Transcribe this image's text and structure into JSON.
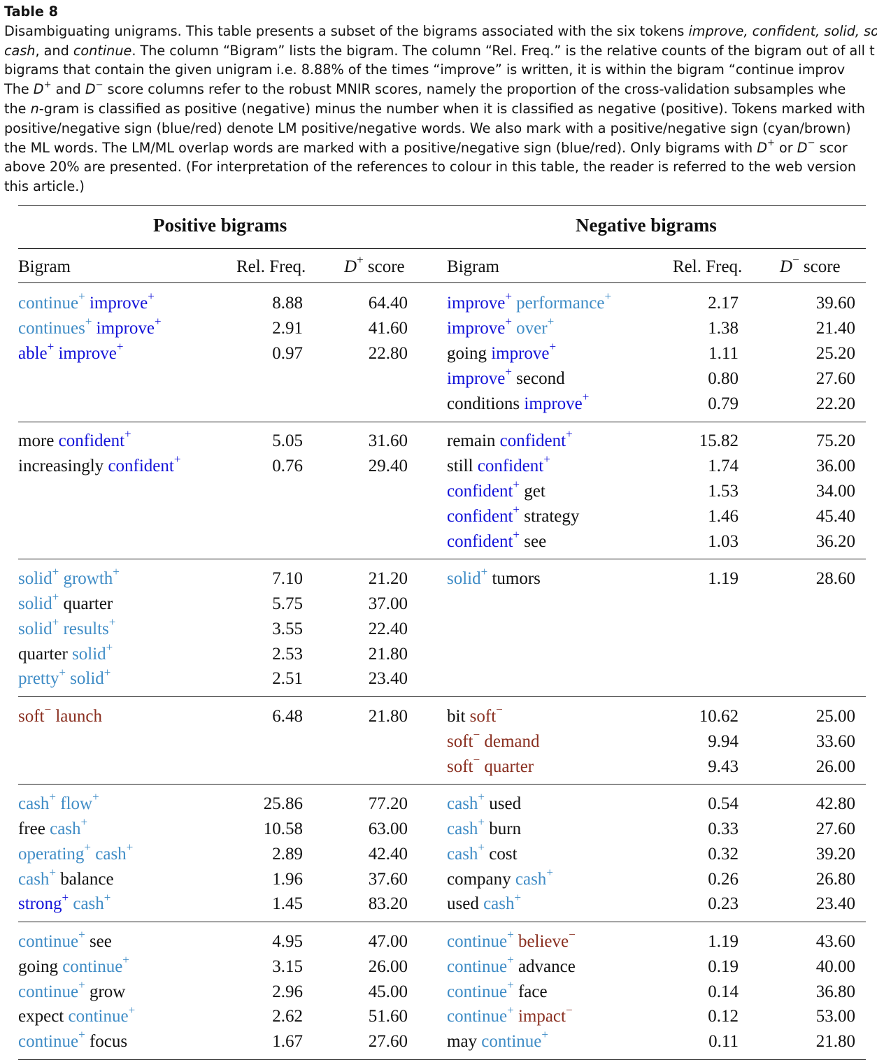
{
  "table_label": "Table 8",
  "caption_lines": [
    "Disambiguating unigrams. This table presents a subset of the bigrams associated with the six tokens ",
    "improve, confident, solid, so",
    "cash",
    ", and ",
    "continue",
    ". The column “Bigram” lists the bigram. The column “Rel. Freq.” is the relative counts of the bigram out of all t",
    "bigrams that contain the given unigram i.e. 8.88% of the times “improve” is written, it is within the bigram “continue improv",
    "The ",
    "D",
    "+",
    " and ",
    "D",
    "−",
    " score columns refer to the robust MNIR scores, namely the proportion of the cross-validation subsamples whe",
    "the ",
    "n",
    "-gram is classified as positive (negative) minus the number when it is classified as negative (positive). Tokens marked with",
    "positive/negative sign (blue/red) denote LM positive/negative words. We also mark with a positive/negative sign (cyan/brown)",
    "the ML words. The LM/ML overlap words are marked with a positive/negative sign (blue/red). Only bigrams with ",
    "D",
    "+",
    " or ",
    "D",
    "−",
    " scor",
    "above 20% are presented. (For interpretation of the references to colour in this table, the reader is referred to the web version",
    "this article.)"
  ],
  "headers": {
    "positive_group": "Positive bigrams",
    "negative_group": "Negative bigrams",
    "bigram": "Bigram",
    "rel_freq": "Rel. Freq.",
    "dplus_letter": "D",
    "dplus_sup": "+",
    "dminus_letter": "D",
    "dminus_sup": "−",
    "score_word": " score"
  },
  "legend_colors": {
    "lm_word": "#1212d8",
    "ml_positive_word": "#3f8cc6",
    "ml_negative_word": "#8a2f20"
  },
  "groups": [
    {
      "positive": [
        {
          "tokens": [
            {
              "t": "continue",
              "s": "+",
              "c": "mlp"
            },
            {
              "t": "improve",
              "s": "+",
              "c": "lmp"
            }
          ],
          "freq": "8.88",
          "score": "64.40"
        },
        {
          "tokens": [
            {
              "t": "continues",
              "s": "+",
              "c": "mlp"
            },
            {
              "t": "improve",
              "s": "+",
              "c": "lmp"
            }
          ],
          "freq": "2.91",
          "score": "41.60"
        },
        {
          "tokens": [
            {
              "t": "able",
              "s": "+",
              "c": "lmp"
            },
            {
              "t": "improve",
              "s": "+",
              "c": "lmp"
            }
          ],
          "freq": "0.97",
          "score": "22.80"
        }
      ],
      "negative": [
        {
          "tokens": [
            {
              "t": "improve",
              "s": "+",
              "c": "lmp"
            },
            {
              "t": "performance",
              "s": "+",
              "c": "mlp"
            }
          ],
          "freq": "2.17",
          "score": "39.60"
        },
        {
          "tokens": [
            {
              "t": "improve",
              "s": "+",
              "c": "lmp"
            },
            {
              "t": "over",
              "s": "+",
              "c": "mlp"
            }
          ],
          "freq": "1.38",
          "score": "21.40"
        },
        {
          "tokens": [
            {
              "t": "going",
              "s": "",
              "c": ""
            },
            {
              "t": "improve",
              "s": "+",
              "c": "lmp"
            }
          ],
          "freq": "1.11",
          "score": "25.20"
        },
        {
          "tokens": [
            {
              "t": "improve",
              "s": "+",
              "c": "lmp"
            },
            {
              "t": "second",
              "s": "",
              "c": ""
            }
          ],
          "freq": "0.80",
          "score": "27.60"
        },
        {
          "tokens": [
            {
              "t": "conditions",
              "s": "",
              "c": ""
            },
            {
              "t": "improve",
              "s": "+",
              "c": "lmp"
            }
          ],
          "freq": "0.79",
          "score": "22.20"
        }
      ]
    },
    {
      "positive": [
        {
          "tokens": [
            {
              "t": "more",
              "s": "",
              "c": ""
            },
            {
              "t": "confident",
              "s": "+",
              "c": "lmp"
            }
          ],
          "freq": "5.05",
          "score": "31.60"
        },
        {
          "tokens": [
            {
              "t": "increasingly",
              "s": "",
              "c": ""
            },
            {
              "t": "confident",
              "s": "+",
              "c": "lmp"
            }
          ],
          "freq": "0.76",
          "score": "29.40"
        }
      ],
      "negative": [
        {
          "tokens": [
            {
              "t": "remain",
              "s": "",
              "c": ""
            },
            {
              "t": "confident",
              "s": "+",
              "c": "lmp"
            }
          ],
          "freq": "15.82",
          "score": "75.20"
        },
        {
          "tokens": [
            {
              "t": "still",
              "s": "",
              "c": ""
            },
            {
              "t": "confident",
              "s": "+",
              "c": "lmp"
            }
          ],
          "freq": "1.74",
          "score": "36.00"
        },
        {
          "tokens": [
            {
              "t": "confident",
              "s": "+",
              "c": "lmp"
            },
            {
              "t": "get",
              "s": "",
              "c": ""
            }
          ],
          "freq": "1.53",
          "score": "34.00"
        },
        {
          "tokens": [
            {
              "t": "confident",
              "s": "+",
              "c": "lmp"
            },
            {
              "t": "strategy",
              "s": "",
              "c": ""
            }
          ],
          "freq": "1.46",
          "score": "45.40"
        },
        {
          "tokens": [
            {
              "t": "confident",
              "s": "+",
              "c": "lmp"
            },
            {
              "t": "see",
              "s": "",
              "c": ""
            }
          ],
          "freq": "1.03",
          "score": "36.20"
        }
      ]
    },
    {
      "positive": [
        {
          "tokens": [
            {
              "t": "solid",
              "s": "+",
              "c": "mlp"
            },
            {
              "t": "growth",
              "s": "+",
              "c": "mlp"
            }
          ],
          "freq": "7.10",
          "score": "21.20"
        },
        {
          "tokens": [
            {
              "t": "solid",
              "s": "+",
              "c": "mlp"
            },
            {
              "t": "quarter",
              "s": "",
              "c": ""
            }
          ],
          "freq": "5.75",
          "score": "37.00"
        },
        {
          "tokens": [
            {
              "t": "solid",
              "s": "+",
              "c": "mlp"
            },
            {
              "t": "results",
              "s": "+",
              "c": "mlp"
            }
          ],
          "freq": "3.55",
          "score": "22.40"
        },
        {
          "tokens": [
            {
              "t": "quarter",
              "s": "",
              "c": ""
            },
            {
              "t": "solid",
              "s": "+",
              "c": "mlp"
            }
          ],
          "freq": "2.53",
          "score": "21.80"
        },
        {
          "tokens": [
            {
              "t": "pretty",
              "s": "+",
              "c": "mlp"
            },
            {
              "t": "solid",
              "s": "+",
              "c": "mlp"
            }
          ],
          "freq": "2.51",
          "score": "23.40"
        }
      ],
      "negative": [
        {
          "tokens": [
            {
              "t": "solid",
              "s": "+",
              "c": "mlp"
            },
            {
              "t": "tumors",
              "s": "",
              "c": ""
            }
          ],
          "freq": "1.19",
          "score": "28.60"
        }
      ]
    },
    {
      "positive": [
        {
          "tokens": [
            {
              "t": "soft",
              "s": "−",
              "c": "mln"
            },
            {
              "t": "launch",
              "s": "",
              "c": "mln"
            }
          ],
          "freq": "6.48",
          "score": "21.80"
        }
      ],
      "negative": [
        {
          "tokens": [
            {
              "t": "bit",
              "s": "",
              "c": ""
            },
            {
              "t": "soft",
              "s": "−",
              "c": "mln"
            }
          ],
          "freq": "10.62",
          "score": "25.00"
        },
        {
          "tokens": [
            {
              "t": "soft",
              "s": "−",
              "c": "mln"
            },
            {
              "t": "demand",
              "s": "",
              "c": "mln"
            }
          ],
          "freq": "9.94",
          "score": "33.60"
        },
        {
          "tokens": [
            {
              "t": "soft",
              "s": "−",
              "c": "mln"
            },
            {
              "t": "quarter",
              "s": "",
              "c": "mln"
            }
          ],
          "freq": "9.43",
          "score": "26.00"
        }
      ]
    },
    {
      "positive": [
        {
          "tokens": [
            {
              "t": "cash",
              "s": "+",
              "c": "mlp"
            },
            {
              "t": "flow",
              "s": "+",
              "c": "mlp"
            }
          ],
          "freq": "25.86",
          "score": "77.20"
        },
        {
          "tokens": [
            {
              "t": "free",
              "s": "",
              "c": ""
            },
            {
              "t": "cash",
              "s": "+",
              "c": "mlp"
            }
          ],
          "freq": "10.58",
          "score": "63.00"
        },
        {
          "tokens": [
            {
              "t": "operating",
              "s": "+",
              "c": "mlp"
            },
            {
              "t": "cash",
              "s": "+",
              "c": "mlp"
            }
          ],
          "freq": "2.89",
          "score": "42.40"
        },
        {
          "tokens": [
            {
              "t": "cash",
              "s": "+",
              "c": "mlp"
            },
            {
              "t": "balance",
              "s": "",
              "c": ""
            }
          ],
          "freq": "1.96",
          "score": "37.60"
        },
        {
          "tokens": [
            {
              "t": "strong",
              "s": "+",
              "c": "lmp"
            },
            {
              "t": "cash",
              "s": "+",
              "c": "mlp"
            }
          ],
          "freq": "1.45",
          "score": "83.20"
        }
      ],
      "negative": [
        {
          "tokens": [
            {
              "t": "cash",
              "s": "+",
              "c": "mlp"
            },
            {
              "t": "used",
              "s": "",
              "c": ""
            }
          ],
          "freq": "0.54",
          "score": "42.80"
        },
        {
          "tokens": [
            {
              "t": "cash",
              "s": "+",
              "c": "mlp"
            },
            {
              "t": "burn",
              "s": "",
              "c": ""
            }
          ],
          "freq": "0.33",
          "score": "27.60"
        },
        {
          "tokens": [
            {
              "t": "cash",
              "s": "+",
              "c": "mlp"
            },
            {
              "t": "cost",
              "s": "",
              "c": ""
            }
          ],
          "freq": "0.32",
          "score": "39.20"
        },
        {
          "tokens": [
            {
              "t": "company",
              "s": "",
              "c": ""
            },
            {
              "t": "cash",
              "s": "+",
              "c": "mlp"
            }
          ],
          "freq": "0.26",
          "score": "26.80"
        },
        {
          "tokens": [
            {
              "t": "used",
              "s": "",
              "c": ""
            },
            {
              "t": "cash",
              "s": "+",
              "c": "mlp"
            }
          ],
          "freq": "0.23",
          "score": "23.40"
        }
      ]
    },
    {
      "positive": [
        {
          "tokens": [
            {
              "t": "continue",
              "s": "+",
              "c": "mlp"
            },
            {
              "t": "see",
              "s": "",
              "c": ""
            }
          ],
          "freq": "4.95",
          "score": "47.00"
        },
        {
          "tokens": [
            {
              "t": "going",
              "s": "",
              "c": ""
            },
            {
              "t": "continue",
              "s": "+",
              "c": "mlp"
            }
          ],
          "freq": "3.15",
          "score": "26.00"
        },
        {
          "tokens": [
            {
              "t": "continue",
              "s": "+",
              "c": "mlp"
            },
            {
              "t": "grow",
              "s": "",
              "c": ""
            }
          ],
          "freq": "2.96",
          "score": "45.00"
        },
        {
          "tokens": [
            {
              "t": "expect",
              "s": "",
              "c": ""
            },
            {
              "t": "continue",
              "s": "+",
              "c": "mlp"
            }
          ],
          "freq": "2.62",
          "score": "51.60"
        },
        {
          "tokens": [
            {
              "t": "continue",
              "s": "+",
              "c": "mlp"
            },
            {
              "t": "focus",
              "s": "",
              "c": ""
            }
          ],
          "freq": "1.67",
          "score": "27.60"
        }
      ],
      "negative": [
        {
          "tokens": [
            {
              "t": "continue",
              "s": "+",
              "c": "mlp"
            },
            {
              "t": "believe",
              "s": "−",
              "c": "mln"
            }
          ],
          "freq": "1.19",
          "score": "43.60"
        },
        {
          "tokens": [
            {
              "t": "continue",
              "s": "+",
              "c": "mlp"
            },
            {
              "t": "advance",
              "s": "",
              "c": ""
            }
          ],
          "freq": "0.19",
          "score": "40.00"
        },
        {
          "tokens": [
            {
              "t": "continue",
              "s": "+",
              "c": "mlp"
            },
            {
              "t": "face",
              "s": "",
              "c": ""
            }
          ],
          "freq": "0.14",
          "score": "36.80"
        },
        {
          "tokens": [
            {
              "t": "continue",
              "s": "+",
              "c": "mlp"
            },
            {
              "t": "impact",
              "s": "−",
              "c": "mln"
            }
          ],
          "freq": "0.12",
          "score": "53.00"
        },
        {
          "tokens": [
            {
              "t": "may",
              "s": "",
              "c": ""
            },
            {
              "t": "continue",
              "s": "+",
              "c": "mlp"
            }
          ],
          "freq": "0.11",
          "score": "21.80"
        }
      ]
    }
  ]
}
